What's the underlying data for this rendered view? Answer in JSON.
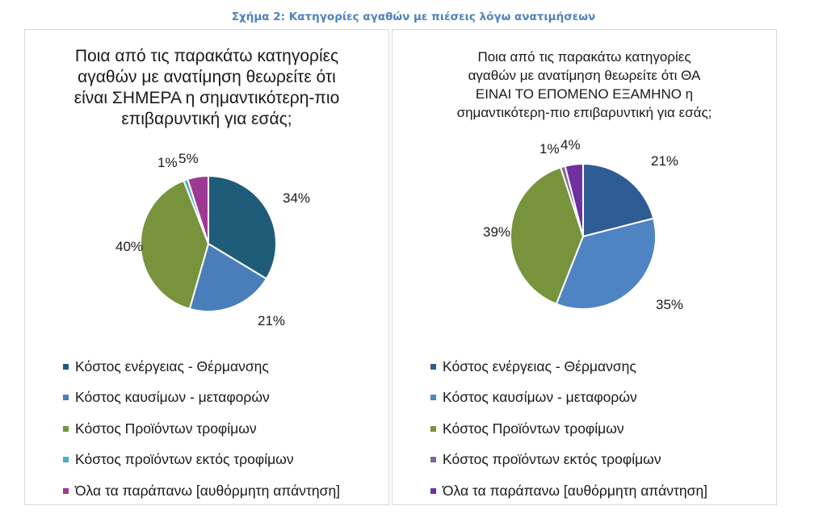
{
  "figure_caption": "Σχήμα 2: Κατηγορίες αγαθών με πιέσεις λόγω ανατιμήσεων",
  "chart_data": [
    {
      "type": "pie",
      "title_lines": [
        "Ποια από τις παρακάτω κατηγορίες",
        "αγαθών με ανατίμηση θεωρείτε ότι",
        "είναι ΣΗΜΕΡΑ η σημαντικότερη-πιο",
        "επιβαρυντική για εσάς;"
      ],
      "categories": [
        "Κόστος ενέργειας - Θέρμανσης",
        "Κόστος καυσίμων - μεταφορών",
        "Κόστος Προϊόντων τροφίμων",
        "Κόστος προϊόντων εκτός τροφίμων",
        "Όλα τα παράπανω [αυθόρμητη απάντηση]"
      ],
      "values": [
        34,
        21,
        40,
        1,
        5
      ],
      "data_labels": [
        "34%",
        "21%",
        "40%",
        "1%",
        "5%"
      ],
      "colors": [
        "#1f5c7a",
        "#4a7ebb",
        "#77933c",
        "#4bacc6",
        "#9e3993"
      ],
      "legend_position": "bottom"
    },
    {
      "type": "pie",
      "title_lines": [
        "Ποια από τις παρακάτω κατηγορίες",
        "αγαθών με ανατίμηση θεωρείτε ότι ΘΑ",
        "ΕΙΝΑΙ ΤΟ ΕΠΟΜΕΝΟ ΕΞΑΜΗΝΟ η",
        "σημαντικότερη-πιο επιβαρυντική για εσάς;"
      ],
      "categories": [
        "Κόστος ενέργειας - Θέρμανσης",
        "Κόστος καυσίμων - μεταφορών",
        "Κόστος Προϊόντων τροφίμων",
        "Κόστος προϊόντων εκτός τροφίμων",
        "Όλα τα παράπανω [αυθόρμητη απάντηση]"
      ],
      "values": [
        21,
        35,
        39,
        1,
        4
      ],
      "data_labels": [
        "21%",
        "35%",
        "39%",
        "1%",
        "4%"
      ],
      "colors": [
        "#2e5b93",
        "#4f84c4",
        "#77933c",
        "#8064a2",
        "#7030a0"
      ],
      "legend_position": "bottom"
    }
  ]
}
